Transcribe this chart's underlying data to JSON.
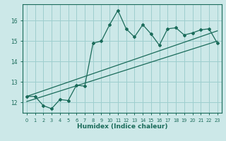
{
  "xlabel": "Humidex (Indice chaleur)",
  "bg_color": "#cce8e8",
  "grid_color": "#9ecece",
  "line_color": "#1a6b5a",
  "xlim": [
    -0.5,
    23.5
  ],
  "ylim": [
    11.5,
    16.8
  ],
  "yticks": [
    12,
    13,
    14,
    15,
    16
  ],
  "xticks": [
    0,
    1,
    2,
    3,
    4,
    5,
    6,
    7,
    8,
    9,
    10,
    11,
    12,
    13,
    14,
    15,
    16,
    17,
    18,
    19,
    20,
    21,
    22,
    23
  ],
  "main_x": [
    0,
    1,
    2,
    3,
    4,
    5,
    6,
    7,
    8,
    9,
    10,
    11,
    12,
    13,
    14,
    15,
    16,
    17,
    18,
    19,
    20,
    21,
    22,
    23
  ],
  "main_y": [
    12.3,
    12.3,
    11.85,
    11.7,
    12.15,
    12.1,
    12.85,
    12.8,
    14.9,
    15.0,
    15.8,
    16.5,
    15.6,
    15.2,
    15.8,
    15.35,
    14.8,
    15.6,
    15.65,
    15.3,
    15.4,
    15.55,
    15.6,
    14.9
  ],
  "line1_x": [
    0,
    23
  ],
  "line1_y": [
    12.05,
    15.0
  ],
  "line2_x": [
    0,
    23
  ],
  "line2_y": [
    12.3,
    15.5
  ]
}
